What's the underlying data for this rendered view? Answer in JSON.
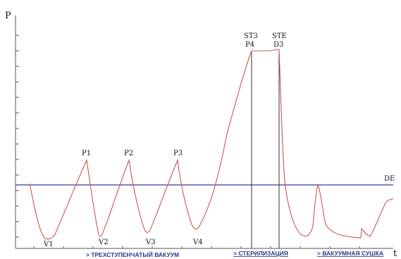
{
  "axes": {
    "y_label": "P",
    "x_label": "t"
  },
  "points": {
    "v1": "V1",
    "v2": "V2",
    "v3": "V3",
    "v4": "V4",
    "p1": "P1",
    "p2": "P2",
    "p3": "P3",
    "st3": "ST3",
    "p4": "P4",
    "ste": "STE",
    "d3": "D3",
    "de": "DE"
  },
  "phases": {
    "vacuum": "> ТРЕХСТУПЕНЧАТЫЙ ВАКУУМ",
    "sterilization": "> СТЕРИЛИЗАЦИЯ",
    "drying": "> ВАКУУМНАЯ СУШКА"
  },
  "colors": {
    "curve": "#c8584a",
    "reference_line": "#2f3fa8",
    "axis": "#555555",
    "phase_text": "#2a3a8c"
  }
}
